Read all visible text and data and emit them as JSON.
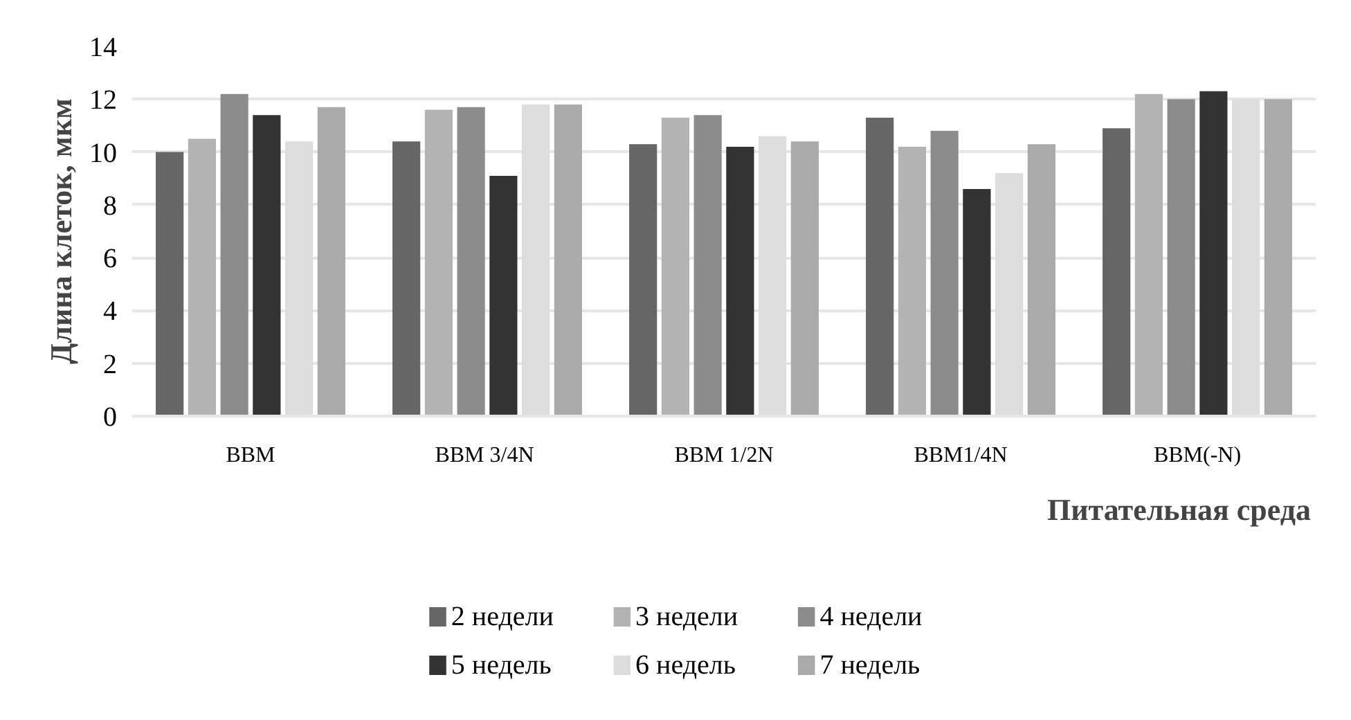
{
  "chart_data": {
    "type": "bar",
    "xlabel": "Питательная среда",
    "ylabel": "Длина клеток, мкм",
    "categories": [
      "BBM",
      "BBM  3/4N",
      "BBM 1/2N",
      "BBM1/4N",
      "BBM(-N)"
    ],
    "series": [
      {
        "name": "2 недели",
        "color": "#666666",
        "values": [
          10.0,
          10.4,
          10.3,
          11.3,
          10.9
        ]
      },
      {
        "name": "3 недели",
        "color": "#b3b3b3",
        "values": [
          10.5,
          11.6,
          11.3,
          10.2,
          12.2
        ]
      },
      {
        "name": "4 недели",
        "color": "#8c8c8c",
        "values": [
          12.2,
          11.7,
          11.4,
          10.8,
          12.0
        ]
      },
      {
        "name": "5 недель",
        "color": "#333333",
        "values": [
          11.4,
          9.1,
          10.2,
          8.6,
          12.3
        ]
      },
      {
        "name": "6 недель",
        "color": "#dddddd",
        "values": [
          10.4,
          11.8,
          10.6,
          9.2,
          12.0
        ]
      },
      {
        "name": "7 недель",
        "color": "#aaaaaa",
        "values": [
          11.7,
          11.8,
          10.4,
          10.3,
          12.0
        ]
      }
    ],
    "ylim": [
      0,
      14
    ],
    "yticks": [
      0,
      2,
      4,
      6,
      8,
      10,
      12,
      14
    ],
    "grid": "y",
    "legend": "bottom"
  }
}
